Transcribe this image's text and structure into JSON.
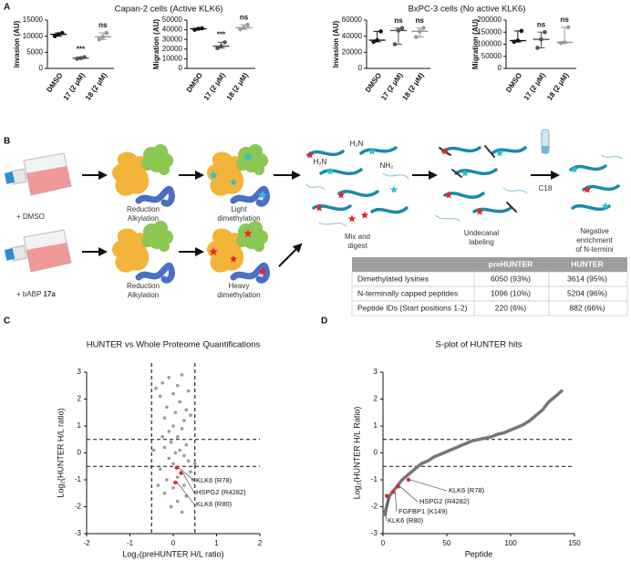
{
  "panel_labels": [
    "A",
    "B",
    "C",
    "D"
  ],
  "group_titles": [
    "Capan-2 cells (Active KLK6)",
    "BxPC-3 cells (No active KLK6)"
  ],
  "chart_data": [
    {
      "type": "dot",
      "ylabel": "Invasion (AU)",
      "categories": [
        "DMSO",
        "17 (2 μM)",
        "18 (2 μM)"
      ],
      "points": [
        [
          10000,
          10600,
          11000
        ],
        [
          3000,
          3200,
          3500
        ],
        [
          9000,
          9800,
          11000
        ]
      ],
      "colors": [
        "#111111",
        "#555555",
        "#9a9a9a"
      ],
      "annotations": [
        null,
        "***",
        "ns"
      ],
      "ylim": [
        0,
        15000
      ],
      "yticks": [
        0,
        5000,
        10000,
        15000
      ]
    },
    {
      "type": "dot",
      "ylabel": "Migration (AU)",
      "categories": [
        "DMSO",
        "17 (2 μM)",
        "18 (2 μM)"
      ],
      "points": [
        [
          40000,
          41000,
          41500
        ],
        [
          21000,
          23000,
          27000
        ],
        [
          40500,
          42000,
          45000
        ]
      ],
      "colors": [
        "#111111",
        "#555555",
        "#9a9a9a"
      ],
      "annotations": [
        null,
        "***",
        "ns"
      ],
      "ylim": [
        0,
        50000
      ],
      "yticks": [
        0,
        10000,
        20000,
        30000,
        40000,
        50000
      ]
    },
    {
      "type": "dot",
      "ylabel": "Invasion (AU)",
      "categories": [
        "DMSO",
        "17 (2 μM)",
        "18 (2 μM)"
      ],
      "points": [
        [
          33000,
          35000,
          46000
        ],
        [
          30000,
          47000,
          50000
        ],
        [
          39000,
          46000,
          50000
        ]
      ],
      "colors": [
        "#111111",
        "#555555",
        "#9a9a9a"
      ],
      "annotations": [
        null,
        "ns",
        "ns"
      ],
      "ylim": [
        0,
        60000
      ],
      "yticks": [
        0,
        20000,
        40000,
        60000
      ]
    },
    {
      "type": "dot",
      "ylabel": "Migration (AU)",
      "categories": [
        "DMSO",
        "17 (2 μM)",
        "18 (2 μM)"
      ],
      "points": [
        [
          110000,
          115000,
          155000
        ],
        [
          85000,
          120000,
          150000
        ],
        [
          105000,
          108000,
          170000
        ]
      ],
      "colors": [
        "#111111",
        "#555555",
        "#9a9a9a"
      ],
      "annotations": [
        null,
        "ns",
        "ns"
      ],
      "ylim": [
        0,
        200000
      ],
      "yticks": [
        0,
        50000,
        100000,
        150000,
        200000
      ]
    },
    {
      "type": "scatter",
      "title": "HUNTER vs Whole Proteome Quantifications",
      "xlabel": "Log₂(preHUNTER H/L ratio)",
      "ylabel": "Log₂(HUNTER H/L ratio)",
      "xlim": [
        -2,
        2
      ],
      "ylim": [
        -3,
        3
      ],
      "xticks": [
        -2,
        -1,
        0,
        1,
        2
      ],
      "yticks": [
        -3,
        -2,
        -1,
        0,
        1,
        2,
        3
      ],
      "reference_lines": {
        "x": [
          -0.5,
          0.5
        ],
        "y": [
          -0.5,
          0.5
        ]
      },
      "series": [
        {
          "color": "#9a9a9a",
          "x": [
            -0.25,
            -0.1,
            0.1,
            0.2,
            -0.3,
            0,
            0.15,
            -0.15,
            0.3,
            0.05,
            -0.2,
            0.25,
            0,
            -0.1,
            0.2,
            0.1,
            -0.05,
            0.3,
            0.15,
            -0.2,
            0.05,
            0.25,
            -0.1,
            0.35,
            0,
            -0.3,
            0.4,
            0.1,
            -0.15,
            0.25,
            0,
            -0.2,
            0.3,
            0.1,
            -0.05,
            0.2,
            -0.25,
            0.4,
            -0.35,
            0.45,
            -0.4,
            0.35,
            0.5,
            -0.45
          ],
          "y": [
            2.6,
            2.8,
            2.5,
            2.9,
            2.1,
            2.2,
            1.9,
            1.7,
            1.6,
            1.5,
            1.3,
            1.2,
            1.0,
            0.8,
            0.9,
            0.6,
            0.4,
            0.3,
            0.1,
            0.2,
            0,
            -0.1,
            -0.2,
            -0.3,
            -0.4,
            -0.6,
            -0.7,
            -0.9,
            -1.0,
            -1.2,
            -1.3,
            -1.5,
            -1.6,
            -1.8,
            -2.0,
            -2.2,
            0.6,
            1.4,
            -1.2,
            -1.0,
            2.4,
            2.3,
            -0.4,
            0.1
          ]
        },
        {
          "color": "#e8242a",
          "x": [
            0.08,
            0.18,
            0.05
          ],
          "y": [
            -0.55,
            -0.75,
            -1.1
          ],
          "point_labels": [
            "KLK6 (R78)",
            "HSPG2 (R4282)",
            "KLK6 (R80)"
          ]
        }
      ]
    },
    {
      "type": "scatter",
      "title": "S-plot of HUNTER hits",
      "xlabel": "Peptide",
      "ylabel": "Log₂(HUNTER H/L Ratio)",
      "xlim": [
        0,
        150
      ],
      "ylim": [
        -3,
        3
      ],
      "xticks": [
        0,
        50,
        100,
        150
      ],
      "yticks": [
        -3,
        -2,
        -1,
        0,
        1,
        2,
        3
      ],
      "reference_lines": {
        "y": [
          -0.5,
          0.5
        ]
      },
      "series": [
        {
          "color": "#777777",
          "line": true,
          "x": [
            1,
            5,
            10,
            15,
            20,
            25,
            30,
            35,
            40,
            45,
            50,
            55,
            60,
            65,
            70,
            75,
            80,
            85,
            90,
            95,
            100,
            105,
            110,
            115,
            120,
            125,
            130,
            135,
            140
          ],
          "y": [
            -2.3,
            -1.6,
            -1.3,
            -1.0,
            -0.8,
            -0.6,
            -0.4,
            -0.3,
            -0.15,
            -0.05,
            0.05,
            0.15,
            0.25,
            0.35,
            0.45,
            0.5,
            0.55,
            0.6,
            0.7,
            0.75,
            0.85,
            0.95,
            1.05,
            1.2,
            1.4,
            1.6,
            1.9,
            2.1,
            2.3
          ]
        },
        {
          "color": "#e8242a",
          "x": [
            3,
            8,
            12,
            20
          ],
          "y": [
            -1.6,
            -1.45,
            -1.25,
            -1.0
          ],
          "point_labels": [
            "KLK6 (R80)",
            "FGFBP1 (K149)",
            "HSPG2 (R4282)",
            "KLK6 (R78)"
          ]
        }
      ]
    }
  ],
  "workflow": {
    "condition_1": "+ DMSO",
    "condition_2": [
      "+ bABP ",
      "17a"
    ],
    "row_1_steps": [
      [
        "Reduction",
        "Alkylation"
      ],
      [
        "Light",
        "dimethylation"
      ]
    ],
    "row_2_steps": [
      [
        "Reduction",
        "Alkylation"
      ],
      [
        "Heavy",
        "dimethylation"
      ]
    ],
    "mix": [
      "Mix and",
      "digest"
    ],
    "labeling": [
      "Undecanal",
      "labeling"
    ],
    "column": "C18",
    "enrichment": [
      "Negative",
      "enrichment",
      "of N-termini"
    ],
    "amine_labels": [
      "H₂N",
      "H₂N",
      "NH₂"
    ]
  },
  "table": {
    "header": [
      "preHUNTER",
      "HUNTER"
    ],
    "rows": [
      [
        "Dimethylated lysines",
        "6050 (93%)",
        "3614 (95%)"
      ],
      [
        "N-terminally capped peptides",
        "1096 (10%)",
        "5204 (96%)"
      ],
      [
        "Peptide IDs (Start positions 1-2)",
        "220 (6%)",
        "882 (66%)"
      ]
    ]
  }
}
